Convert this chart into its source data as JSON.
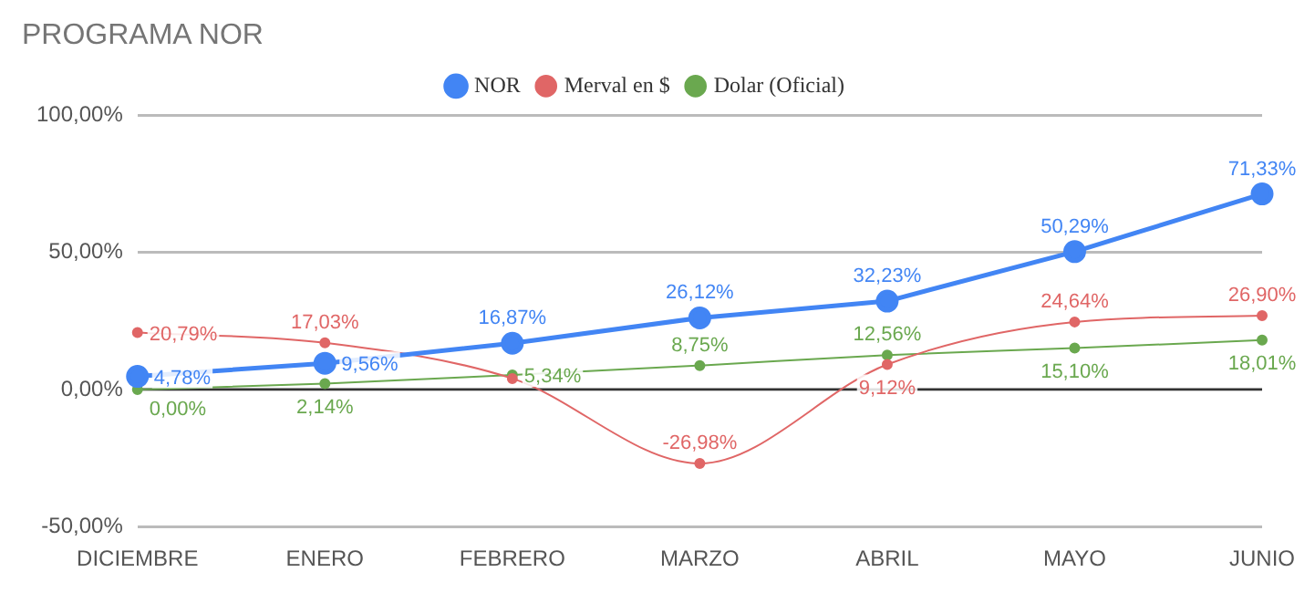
{
  "chart_data": {
    "type": "line",
    "title": "PROGRAMA NOR",
    "categories": [
      "DICIEMBRE",
      "ENERO",
      "FEBRERO",
      "MARZO",
      "ABRIL",
      "MAYO",
      "JUNIO"
    ],
    "series": [
      {
        "name": "NOR",
        "color": "#4285f4",
        "values": [
          4.78,
          9.56,
          16.87,
          26.12,
          32.23,
          50.29,
          71.33
        ],
        "value_labels": [
          "4,78%",
          "9,56%",
          "16,87%",
          "26,12%",
          "32,23%",
          "50,29%",
          "71,33%"
        ]
      },
      {
        "name": "Merval en $",
        "color": "#e06666",
        "values": [
          20.79,
          17.03,
          4,
          -26.98,
          9.12,
          24.64,
          26.9
        ],
        "value_labels": [
          "20,79%",
          "17,03%",
          null,
          "-26,98%",
          "9,12%",
          "24,64%",
          "26,90%"
        ]
      },
      {
        "name": "Dolar (Oficial)",
        "color": "#6aa84f",
        "values": [
          0,
          2.14,
          5.34,
          8.75,
          12.56,
          15.1,
          18.01
        ],
        "value_labels": [
          "0,00%",
          "2,14%",
          "5,34%",
          "8,75%",
          "12,56%",
          "15,10%",
          "18,01%"
        ]
      }
    ],
    "ylim": [
      -50,
      100
    ],
    "yticks": [
      {
        "value": -50,
        "label": "-50,00%"
      },
      {
        "value": 0,
        "label": "0,00%"
      },
      {
        "value": 50,
        "label": "50,00%"
      },
      {
        "value": 100,
        "label": "100,00%"
      }
    ],
    "ref_lines": [
      {
        "axis": "y",
        "value": 0,
        "color": "#333333"
      }
    ],
    "grid": "y",
    "legend": "top",
    "marker": "circle"
  }
}
